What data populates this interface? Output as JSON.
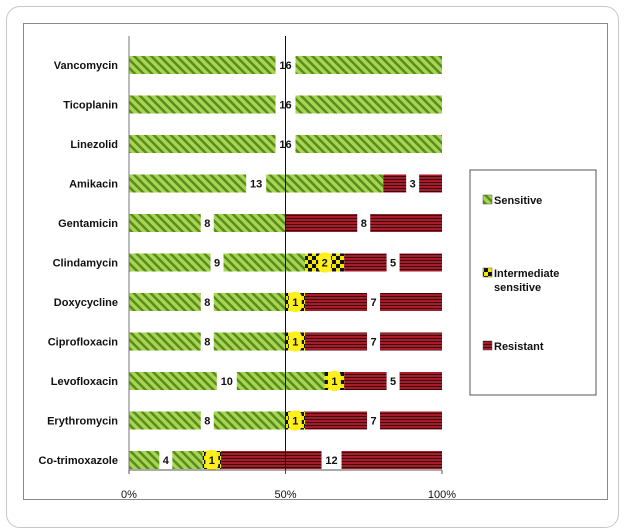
{
  "chart_data": {
    "type": "bar",
    "stacked": "percent",
    "categories": [
      "Vancomycin",
      "Ticoplanin",
      "Linezolid",
      "Amikacin",
      "Gentamicin",
      "Clindamycin",
      "Doxycycline",
      "Ciprofloxacin",
      "Levofloxacin",
      "Erythromycin",
      "Co-trimoxazole"
    ],
    "series": [
      {
        "name": "Sensitive",
        "values": [
          16,
          16,
          16,
          13,
          8,
          9,
          8,
          8,
          10,
          8,
          4
        ],
        "color": "#8cc43c"
      },
      {
        "name": "Intermediate sensitive",
        "values": [
          0,
          0,
          0,
          0,
          0,
          2,
          1,
          1,
          1,
          1,
          1
        ],
        "color": "#f2e400"
      },
      {
        "name": "Resistant",
        "values": [
          0,
          0,
          0,
          3,
          8,
          5,
          7,
          7,
          5,
          7,
          12
        ],
        "color": "#a61c2a"
      }
    ],
    "x_ticks": [
      "0%",
      "50%",
      "100%"
    ],
    "xlim": [
      0,
      100
    ],
    "legend": {
      "placement": "right",
      "labels": [
        "Sensitive",
        "Intermediate",
        "sensitive",
        "Resistant"
      ]
    }
  }
}
